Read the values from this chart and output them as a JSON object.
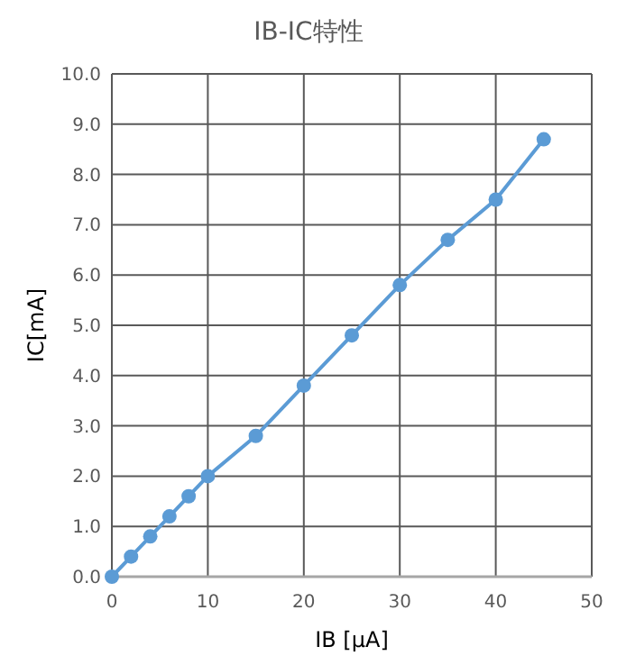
{
  "chart_data": {
    "type": "line",
    "title": "IB-IC特性",
    "xlabel": "IB [μA]",
    "ylabel": "IC[mA]",
    "x": [
      0,
      2,
      4,
      6,
      8,
      10,
      15,
      20,
      25,
      30,
      35,
      40,
      45
    ],
    "series": [
      {
        "color": "#5b9bd5",
        "values": [
          0,
          0.4,
          0.8,
          1.2,
          1.6,
          2.0,
          2.8,
          3.8,
          4.8,
          5.8,
          6.7,
          7.5,
          8.7
        ]
      }
    ],
    "xlim": [
      0,
      50
    ],
    "xticks": [
      0,
      10,
      20,
      30,
      40,
      50
    ],
    "ylim": [
      0,
      10
    ],
    "yticks": [
      {
        "value": 0,
        "label": "0.0"
      },
      {
        "value": 1,
        "label": "1.0"
      },
      {
        "value": 2,
        "label": "2.0"
      },
      {
        "value": 3,
        "label": "3.0"
      },
      {
        "value": 4,
        "label": "4.0"
      },
      {
        "value": 5,
        "label": "5.0"
      },
      {
        "value": 6,
        "label": "6.0"
      },
      {
        "value": 7,
        "label": "7.0"
      },
      {
        "value": 8,
        "label": "8.0"
      },
      {
        "value": 9,
        "label": "9.0"
      },
      {
        "value": 10,
        "label": "10.0"
      }
    ],
    "grid": true,
    "marker": "circle",
    "line_style": "solid"
  }
}
